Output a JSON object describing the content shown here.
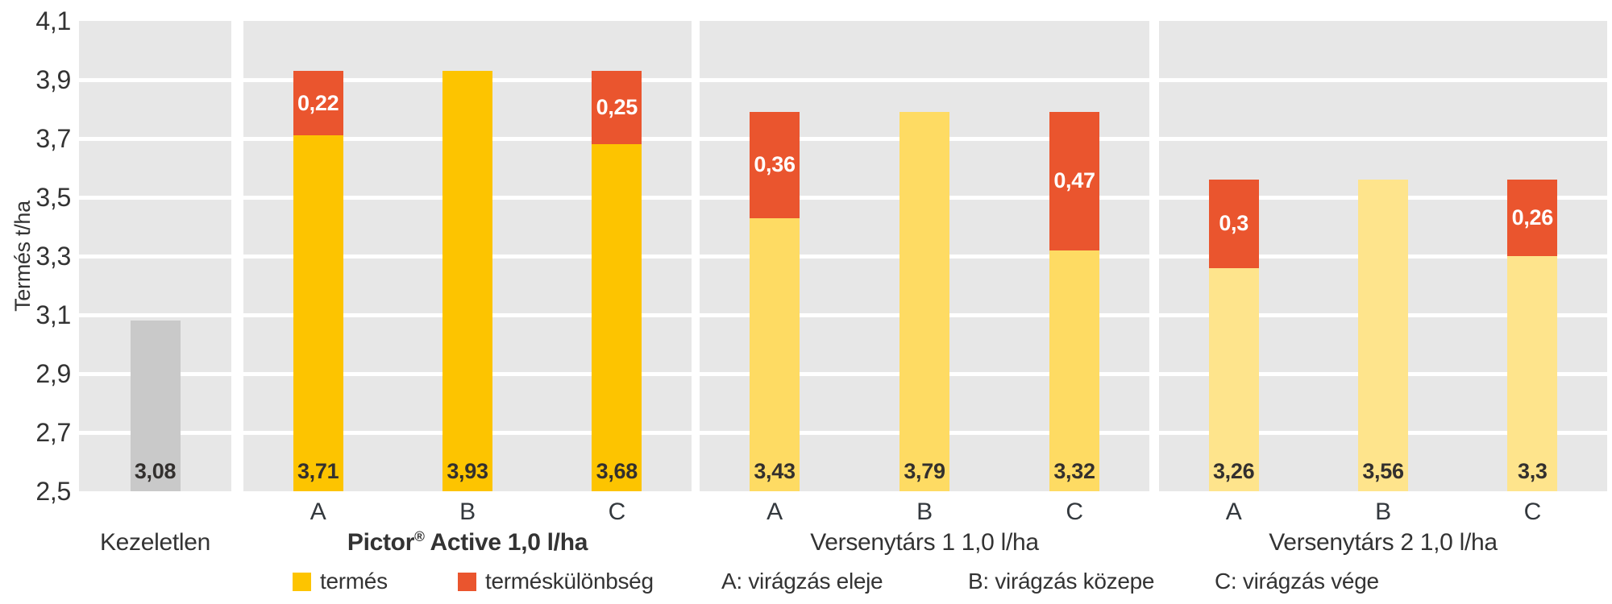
{
  "chart_data": {
    "type": "bar",
    "stacked": true,
    "title": "",
    "ylabel": "Termés t/ha",
    "xlabel": "",
    "ylim": [
      2.5,
      4.1
    ],
    "ytick_step": 0.2,
    "ytick_labels": [
      "4,1",
      "3,9",
      "3,7",
      "3,5",
      "3,3",
      "3,1",
      "2,9",
      "2,7",
      "2,5"
    ],
    "grid": "horizontal white gridlines on gray plot bands, one gray panel per group",
    "legend_position": "bottom",
    "groups": [
      {
        "label": "Kezeletlen",
        "label_bold": false,
        "bar_color": "#c9c9c9",
        "bars": [
          {
            "letter": "",
            "value": 3.08,
            "value_label": "3,08",
            "difference": null,
            "difference_label": null
          }
        ]
      },
      {
        "label": "Pictor® Active 1,0 l/ha",
        "label_bold": true,
        "bar_color": "#fdc400",
        "bars": [
          {
            "letter": "A",
            "value": 3.71,
            "value_label": "3,71",
            "difference": 0.22,
            "difference_label": "0,22"
          },
          {
            "letter": "B",
            "value": 3.93,
            "value_label": "3,93",
            "difference": null,
            "difference_label": null
          },
          {
            "letter": "C",
            "value": 3.68,
            "value_label": "3,68",
            "difference": 0.25,
            "difference_label": "0,25"
          }
        ]
      },
      {
        "label": "Versenytárs 1 1,0 l/ha",
        "label_bold": false,
        "bar_color": "#fedb63",
        "bars": [
          {
            "letter": "A",
            "value": 3.43,
            "value_label": "3,43",
            "difference": 0.36,
            "difference_label": "0,36"
          },
          {
            "letter": "B",
            "value": 3.79,
            "value_label": "3,79",
            "difference": null,
            "difference_label": null
          },
          {
            "letter": "C",
            "value": 3.32,
            "value_label": "3,32",
            "difference": 0.47,
            "difference_label": "0,47"
          }
        ]
      },
      {
        "label": "Versenytárs 2 1,0 l/ha",
        "label_bold": false,
        "bar_color": "#fee48c",
        "bars": [
          {
            "letter": "A",
            "value": 3.26,
            "value_label": "3,26",
            "difference": 0.3,
            "difference_label": "0,3"
          },
          {
            "letter": "B",
            "value": 3.56,
            "value_label": "3,56",
            "difference": null,
            "difference_label": null
          },
          {
            "letter": "C",
            "value": 3.3,
            "value_label": "3,3",
            "difference": 0.26,
            "difference_label": "0,26"
          }
        ]
      }
    ],
    "difference_color": "#ea552e",
    "legend": [
      {
        "swatch_color": "#fdc400",
        "label": "termés"
      },
      {
        "swatch_color": "#ea552e",
        "label": "terméskülönbség"
      },
      {
        "swatch_color": null,
        "label": "A: virágzás eleje"
      },
      {
        "swatch_color": null,
        "label": "B: virágzás közepe"
      },
      {
        "swatch_color": null,
        "label": "C: virágzás vége"
      }
    ]
  },
  "colors": {
    "plot_band": "#e7e7e7",
    "gridline": "#ffffff",
    "text_dark": "#333333",
    "difference_text": "#ffffff"
  }
}
